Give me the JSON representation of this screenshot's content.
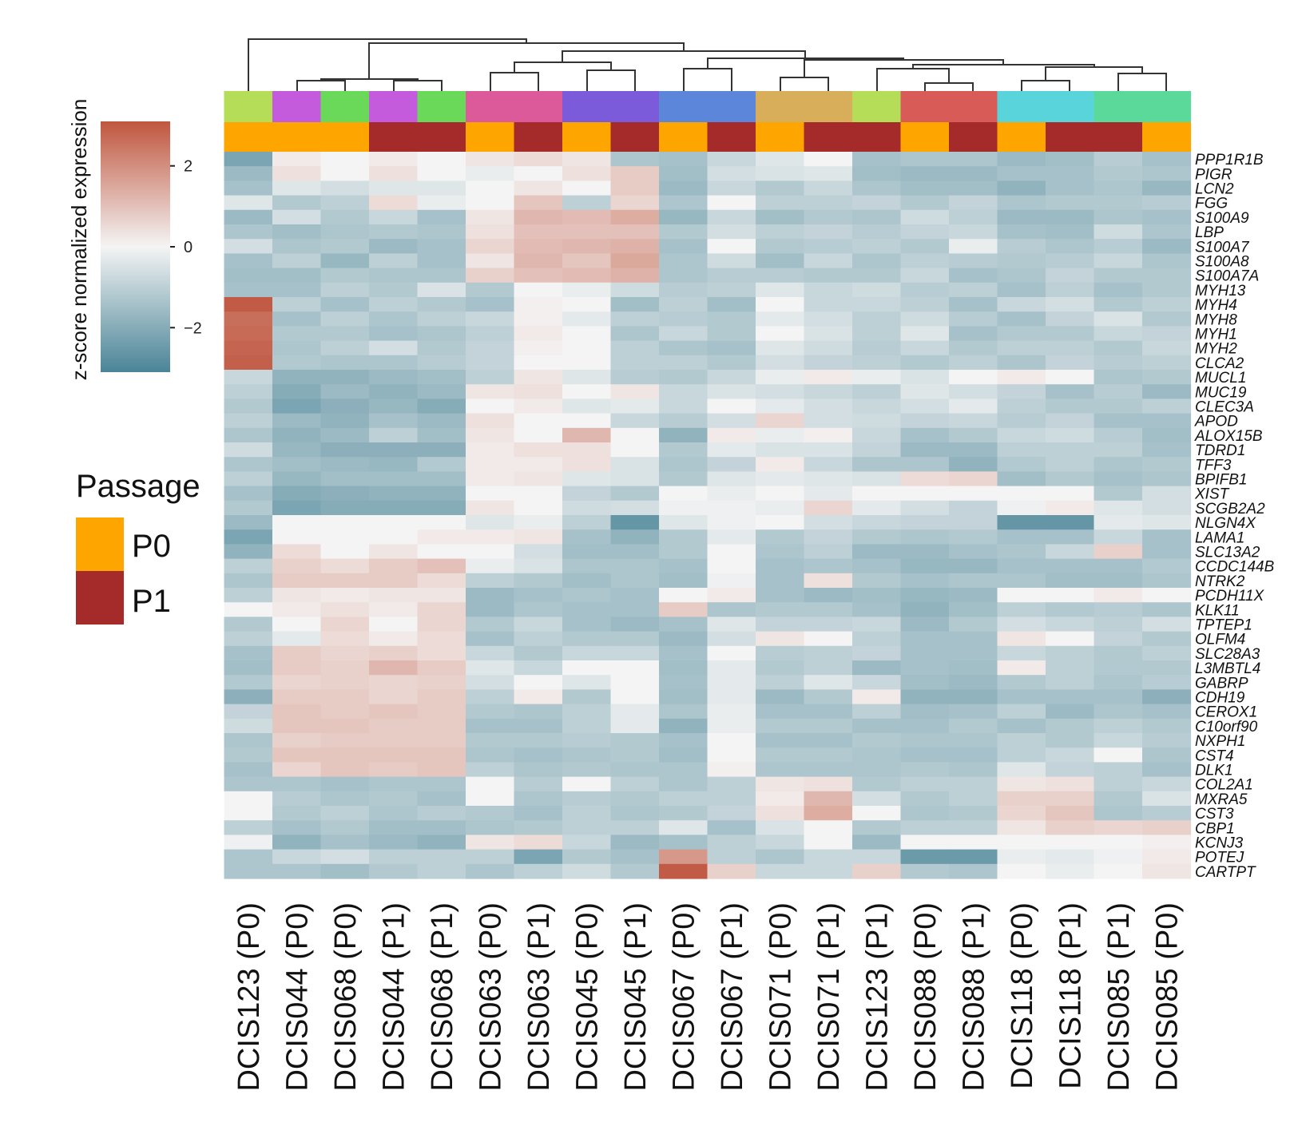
{
  "chart_data": {
    "type": "heatmap",
    "title": "",
    "colorbar": {
      "title": "z-score normalized expression",
      "ticks": [
        {
          "value": 2,
          "label": "2"
        },
        {
          "value": 0,
          "label": "0"
        },
        {
          "value": -2,
          "label": "−2"
        }
      ],
      "range": [
        -3.1,
        3.1
      ],
      "low_color": "#4a8497",
      "mid_color": "#f4f4f4",
      "high_color": "#c0563f"
    },
    "legend": {
      "title": "Passage",
      "items": [
        {
          "label": "P0",
          "color": "#ffa500"
        },
        {
          "label": "P1",
          "color": "#a52a2a"
        }
      ]
    },
    "samples": [
      {
        "label": "DCIS123 (P0)",
        "patient_color": "#b5dd58",
        "passage": "P0"
      },
      {
        "label": "DCIS044 (P0)",
        "patient_color": "#c45bdd",
        "passage": "P0"
      },
      {
        "label": "DCIS068 (P0)",
        "patient_color": "#6ad95a",
        "passage": "P0"
      },
      {
        "label": "DCIS044 (P1)",
        "patient_color": "#c45bdd",
        "passage": "P1"
      },
      {
        "label": "DCIS068 (P1)",
        "patient_color": "#6ad95a",
        "passage": "P1"
      },
      {
        "label": "DCIS063 (P0)",
        "patient_color": "#dd5a9a",
        "passage": "P0"
      },
      {
        "label": "DCIS063 (P1)",
        "patient_color": "#dd5a9a",
        "passage": "P1"
      },
      {
        "label": "DCIS045 (P0)",
        "patient_color": "#7c5bdb",
        "passage": "P0"
      },
      {
        "label": "DCIS045 (P1)",
        "patient_color": "#7c5bdb",
        "passage": "P1"
      },
      {
        "label": "DCIS067 (P0)",
        "patient_color": "#5b86d9",
        "passage": "P0"
      },
      {
        "label": "DCIS067 (P1)",
        "patient_color": "#5b86d9",
        "passage": "P1"
      },
      {
        "label": "DCIS071 (P0)",
        "patient_color": "#d9ae5a",
        "passage": "P0"
      },
      {
        "label": "DCIS071 (P1)",
        "patient_color": "#d9ae5a",
        "passage": "P1"
      },
      {
        "label": "DCIS123 (P1)",
        "patient_color": "#b5dd58",
        "passage": "P1"
      },
      {
        "label": "DCIS088 (P0)",
        "patient_color": "#d95b57",
        "passage": "P0"
      },
      {
        "label": "DCIS088 (P1)",
        "patient_color": "#d95b57",
        "passage": "P1"
      },
      {
        "label": "DCIS118 (P0)",
        "patient_color": "#5ad4db",
        "passage": "P0"
      },
      {
        "label": "DCIS118 (P1)",
        "patient_color": "#5ad4db",
        "passage": "P1"
      },
      {
        "label": "DCIS085 (P1)",
        "patient_color": "#5ad99a",
        "passage": "P1"
      },
      {
        "label": "DCIS085 (P0)",
        "patient_color": "#5ad99a",
        "passage": "P0"
      }
    ],
    "genes": [
      "PPP1R1B",
      "PIGR",
      "LCN2",
      "FGG",
      "S100A9",
      "LBP",
      "S100A7",
      "S100A8",
      "S100A7A",
      "MYH13",
      "MYH4",
      "MYH8",
      "MYH1",
      "MYH2",
      "CLCA2",
      "MUCL1",
      "MUC19",
      "CLEC3A",
      "APOD",
      "ALOX15B",
      "TDRD1",
      "TFF3",
      "BPIFB1",
      "XIST",
      "SCGB2A2",
      "NLGN4X",
      "LAMA1",
      "SLC13A2",
      "CCDC144B",
      "NTRK2",
      "PCDH11X",
      "KLK11",
      "TPTEP1",
      "OLFM4",
      "SLC28A3",
      "L3MBTL4",
      "GABRP",
      "CDH19",
      "CEROX1",
      "C10orf90",
      "NXPH1",
      "CST4",
      "DLK1",
      "COL2A1",
      "MXRA5",
      "CST3",
      "CBP1",
      "KCNJ3",
      "POTEJ",
      "CARTPT"
    ],
    "values": [
      [
        -2.2,
        0.2,
        0.0,
        0.2,
        0.0,
        0.3,
        0.5,
        0.3,
        -1.3,
        -1.4,
        -0.8,
        -0.4,
        0.0,
        -1.4,
        -1.3,
        -1.3,
        -1.6,
        -1.5,
        -1.1,
        -1.4
      ],
      [
        -1.6,
        0.4,
        0.0,
        0.4,
        0.0,
        -0.2,
        0.0,
        0.4,
        0.8,
        -1.5,
        -0.6,
        -0.5,
        -0.4,
        -1.5,
        -1.6,
        -1.6,
        -1.4,
        -1.4,
        -1.2,
        -1.3
      ],
      [
        -1.4,
        -0.4,
        -0.6,
        -0.4,
        -0.4,
        0.0,
        0.3,
        0.0,
        0.8,
        -1.6,
        -0.8,
        -1.2,
        -0.8,
        -1.3,
        -1.5,
        -1.5,
        -1.8,
        -1.4,
        -1.3,
        -1.7
      ],
      [
        -0.4,
        -1.2,
        -1.0,
        0.5,
        -0.2,
        0.0,
        0.9,
        -1.0,
        0.6,
        -1.3,
        0.0,
        -1.0,
        -1.0,
        -0.9,
        -1.2,
        -0.9,
        -1.3,
        -1.2,
        -1.2,
        -1.1
      ],
      [
        -1.6,
        -0.6,
        -1.2,
        -0.8,
        -1.4,
        0.3,
        1.2,
        1.1,
        1.4,
        -1.7,
        -0.8,
        -1.5,
        -1.2,
        -1.3,
        -0.7,
        -1.0,
        -1.6,
        -1.6,
        -1.3,
        -1.4
      ],
      [
        -1.3,
        -1.5,
        -1.3,
        -1.2,
        -1.3,
        0.4,
        1.0,
        1.0,
        1.0,
        -1.2,
        -0.6,
        -1.0,
        -0.9,
        -1.1,
        -0.9,
        -0.8,
        -1.4,
        -1.5,
        -0.7,
        -1.3
      ],
      [
        -0.6,
        -1.3,
        -1.2,
        -1.6,
        -1.4,
        0.6,
        1.1,
        1.2,
        1.3,
        -1.4,
        0.0,
        -1.2,
        -1.1,
        -1.0,
        -1.2,
        -0.2,
        -1.1,
        -1.3,
        -1.1,
        -1.6
      ],
      [
        -1.4,
        -1.0,
        -1.7,
        -1.0,
        -1.4,
        0.3,
        1.2,
        0.9,
        1.5,
        -1.3,
        -0.7,
        -1.5,
        -0.8,
        -1.3,
        -1.0,
        -1.1,
        -1.2,
        -1.1,
        -0.8,
        -1.3
      ],
      [
        -1.5,
        -1.5,
        -1.2,
        -1.3,
        -1.3,
        0.7,
        1.0,
        1.1,
        1.3,
        -1.3,
        -1.1,
        -1.1,
        -1.2,
        -1.2,
        -0.8,
        -1.4,
        -1.3,
        -0.9,
        -1.2,
        -1.2
      ],
      [
        -1.4,
        -1.4,
        -1.0,
        -1.2,
        -0.5,
        -1.2,
        0.0,
        -0.2,
        -0.7,
        -1.1,
        -1.0,
        -0.4,
        -0.8,
        -0.7,
        -1.1,
        -1.0,
        -1.4,
        -1.0,
        -1.4,
        -1.2
      ],
      [
        3.0,
        -1.0,
        -1.4,
        -1.0,
        -1.2,
        -1.4,
        0.1,
        0.0,
        -1.5,
        -1.0,
        -1.5,
        0.0,
        -0.8,
        -0.8,
        -1.0,
        -1.4,
        -0.8,
        -0.6,
        -1.2,
        -1.0
      ],
      [
        2.6,
        -1.4,
        -1.0,
        -1.3,
        -1.0,
        -0.8,
        0.1,
        -0.3,
        -1.0,
        -1.1,
        -1.2,
        -0.3,
        -0.6,
        -1.0,
        -0.7,
        -1.1,
        -1.4,
        -0.9,
        -0.5,
        -1.2
      ],
      [
        2.7,
        -1.2,
        -1.2,
        -1.4,
        -1.3,
        -1.0,
        0.2,
        0.0,
        -1.3,
        -0.8,
        -1.2,
        0.0,
        -0.5,
        -1.0,
        -0.4,
        -1.4,
        -1.2,
        -1.2,
        -0.8,
        -0.9
      ],
      [
        2.8,
        -1.3,
        -1.0,
        -0.6,
        -1.2,
        -0.9,
        0.1,
        0.0,
        -1.0,
        -1.3,
        -1.4,
        -0.4,
        -0.7,
        -1.1,
        -0.8,
        -1.2,
        -1.0,
        -1.0,
        -1.2,
        -0.8
      ],
      [
        2.9,
        -1.2,
        -1.3,
        -1.3,
        -1.1,
        -0.9,
        0.0,
        0.0,
        -1.0,
        -1.0,
        -1.2,
        -0.6,
        -0.9,
        -1.0,
        -1.2,
        -1.0,
        -1.3,
        -0.9,
        -1.1,
        -1.0
      ],
      [
        -0.8,
        -1.8,
        -1.8,
        -1.6,
        -1.5,
        -1.0,
        0.3,
        -0.4,
        -1.1,
        -1.2,
        -0.8,
        -0.2,
        0.2,
        -0.2,
        -0.5,
        0.0,
        0.2,
        0.0,
        -1.3,
        -1.2
      ],
      [
        -1.0,
        -2.0,
        -1.6,
        -1.8,
        -1.6,
        0.3,
        0.4,
        0.0,
        0.3,
        -0.8,
        -0.5,
        -0.6,
        -0.8,
        -1.0,
        -0.4,
        -0.6,
        -0.9,
        -1.4,
        -1.1,
        -1.6
      ],
      [
        -1.2,
        -2.2,
        -1.9,
        -1.7,
        -2.0,
        0.0,
        0.2,
        -0.4,
        -0.3,
        -0.8,
        0.0,
        -0.3,
        -0.6,
        -0.8,
        -0.6,
        -0.3,
        -1.0,
        -1.2,
        -1.2,
        -1.0
      ],
      [
        -1.0,
        -1.6,
        -1.8,
        -1.4,
        -1.6,
        0.4,
        0.0,
        0.0,
        -0.8,
        -1.1,
        -0.6,
        0.6,
        -0.6,
        -0.7,
        -0.9,
        -0.8,
        -1.1,
        -0.9,
        -1.4,
        -1.4
      ],
      [
        -1.3,
        -1.8,
        -1.6,
        -1.0,
        -1.5,
        0.3,
        0.0,
        1.2,
        0.0,
        -1.8,
        0.2,
        -0.2,
        0.1,
        -0.8,
        -1.4,
        -1.2,
        -0.8,
        -0.7,
        -1.1,
        -1.5
      ],
      [
        -0.7,
        -1.7,
        -1.9,
        -1.9,
        -1.9,
        0.2,
        0.4,
        0.4,
        0.0,
        -1.2,
        -0.3,
        -0.5,
        -0.5,
        -0.9,
        -1.6,
        -1.6,
        -1.0,
        -1.0,
        -1.0,
        -1.4
      ],
      [
        -1.3,
        -1.5,
        -1.6,
        -1.7,
        -1.2,
        0.2,
        0.2,
        0.4,
        -0.5,
        -1.3,
        -0.9,
        0.2,
        -0.8,
        -1.3,
        -1.3,
        -1.8,
        -1.2,
        -1.0,
        -1.3,
        -1.2
      ],
      [
        -1.0,
        -1.7,
        -1.5,
        -1.5,
        -1.5,
        0.2,
        0.3,
        -0.4,
        -0.5,
        -1.2,
        -0.4,
        -0.3,
        -0.4,
        -0.5,
        0.5,
        0.6,
        -1.5,
        -1.2,
        -1.4,
        -1.3
      ],
      [
        -1.4,
        -2.0,
        -1.9,
        -1.8,
        -1.8,
        0.0,
        0.0,
        -0.9,
        -1.2,
        0.0,
        -0.2,
        0.0,
        -0.3,
        0.0,
        0.0,
        0.0,
        0.0,
        0.0,
        -1.2,
        -0.6
      ],
      [
        -1.2,
        -2.2,
        -2.0,
        -2.0,
        -2.0,
        0.3,
        0.0,
        -0.7,
        -0.6,
        -0.1,
        -0.1,
        -0.2,
        0.6,
        -0.3,
        -0.6,
        -0.9,
        -0.1,
        0.2,
        -0.4,
        -0.6
      ],
      [
        -1.6,
        0.0,
        0.0,
        0.0,
        0.0,
        -0.4,
        -0.2,
        -1.0,
        -2.6,
        -0.4,
        -0.1,
        0.0,
        -0.6,
        -0.8,
        -0.9,
        -0.9,
        -2.6,
        -2.6,
        -0.3,
        -0.4
      ],
      [
        -2.2,
        0.0,
        0.0,
        0.0,
        0.2,
        0.2,
        0.3,
        -1.4,
        -1.8,
        -1.2,
        -0.3,
        -1.2,
        -0.9,
        -1.2,
        -1.3,
        -1.2,
        -1.4,
        -1.4,
        -0.8,
        -1.4
      ],
      [
        -1.8,
        0.5,
        0.0,
        0.3,
        0.0,
        0.0,
        -0.6,
        -1.5,
        -1.5,
        -1.2,
        0.0,
        -1.3,
        -1.0,
        -1.6,
        -1.6,
        -1.4,
        -1.3,
        -0.8,
        0.7,
        -1.4
      ],
      [
        -1.0,
        0.7,
        0.5,
        0.8,
        1.0,
        -0.2,
        -0.5,
        -1.3,
        -1.3,
        -1.4,
        0.0,
        -1.4,
        -1.3,
        -1.4,
        -1.7,
        -1.7,
        -1.4,
        -1.4,
        -1.4,
        -1.2
      ],
      [
        -1.3,
        0.8,
        0.8,
        0.8,
        0.5,
        -1.0,
        -1.2,
        -1.5,
        -1.3,
        -1.5,
        -0.1,
        -1.4,
        0.4,
        -1.2,
        -1.4,
        -1.3,
        -1.3,
        -1.5,
        -1.5,
        -1.3
      ],
      [
        -1.0,
        0.3,
        0.2,
        0.3,
        0.3,
        -1.6,
        -1.4,
        -1.3,
        -1.4,
        0.0,
        0.2,
        -1.4,
        -1.6,
        -1.5,
        -1.7,
        -1.6,
        0.0,
        0.0,
        0.2,
        0.0
      ],
      [
        0.0,
        0.2,
        0.4,
        0.2,
        0.6,
        -1.6,
        -1.3,
        -1.4,
        -1.4,
        0.8,
        -1.3,
        -1.2,
        -1.2,
        -1.4,
        -1.8,
        -1.5,
        -1.0,
        -1.2,
        -1.1,
        -1.3
      ],
      [
        -1.2,
        0.0,
        0.6,
        0.0,
        0.6,
        -1.2,
        -0.8,
        -1.4,
        -1.6,
        -1.4,
        -0.4,
        -0.9,
        -0.9,
        -0.8,
        -1.6,
        -1.2,
        -0.6,
        -0.8,
        -1.0,
        -0.6
      ],
      [
        -1.0,
        -0.3,
        0.5,
        0.2,
        0.5,
        -1.4,
        -1.0,
        -1.2,
        -1.2,
        -1.6,
        -0.6,
        0.3,
        0.0,
        -1.0,
        -1.4,
        -1.4,
        0.3,
        0.0,
        -0.9,
        -1.2
      ],
      [
        -1.4,
        0.8,
        0.6,
        0.7,
        0.5,
        -0.8,
        -1.2,
        -0.8,
        -0.8,
        -1.4,
        0.0,
        -1.1,
        -1.0,
        -0.9,
        -1.4,
        -1.4,
        -0.8,
        -1.0,
        -1.2,
        -1.0
      ],
      [
        -1.5,
        0.8,
        0.7,
        1.2,
        0.8,
        -0.4,
        -0.8,
        0.0,
        0.0,
        -1.5,
        -0.3,
        -1.2,
        -1.0,
        -1.6,
        -1.4,
        -1.5,
        0.2,
        -1.0,
        -1.2,
        -1.2
      ],
      [
        -1.2,
        0.6,
        0.7,
        0.6,
        0.7,
        -0.6,
        0.0,
        -0.4,
        0.0,
        -1.4,
        -0.3,
        -1.0,
        -0.4,
        -0.8,
        -1.5,
        -1.6,
        -1.2,
        -1.0,
        -1.3,
        -1.1
      ],
      [
        -1.9,
        0.8,
        0.8,
        0.6,
        0.8,
        -1.0,
        0.2,
        -1.2,
        0.0,
        -1.5,
        -0.3,
        -1.6,
        -1.2,
        0.2,
        -1.8,
        -1.8,
        -1.4,
        -1.4,
        -1.4,
        -1.9
      ],
      [
        -0.9,
        0.9,
        0.8,
        0.9,
        0.8,
        -1.2,
        -1.3,
        -1.0,
        -0.3,
        -1.3,
        -0.2,
        -1.4,
        -1.4,
        -1.0,
        -1.5,
        -1.4,
        -1.0,
        -1.6,
        -1.3,
        -1.4
      ],
      [
        -0.7,
        0.9,
        0.9,
        0.8,
        0.8,
        -1.4,
        -1.4,
        -1.0,
        -0.3,
        -1.8,
        -0.2,
        -1.2,
        -1.2,
        -1.4,
        -1.4,
        -1.2,
        -1.4,
        -1.2,
        -1.0,
        -1.2
      ],
      [
        -1.3,
        0.7,
        0.8,
        0.8,
        0.8,
        -1.2,
        -1.2,
        -1.1,
        -1.2,
        -1.4,
        0.0,
        -1.4,
        -1.4,
        -1.2,
        -1.3,
        -1.3,
        -1.0,
        -1.2,
        -0.8,
        -1.1
      ],
      [
        -1.2,
        0.9,
        0.9,
        0.9,
        0.9,
        -1.3,
        -1.4,
        -1.3,
        -1.2,
        -1.5,
        0.0,
        -1.2,
        -1.2,
        -1.3,
        -1.4,
        -1.4,
        -1.0,
        -0.8,
        0.0,
        -1.3
      ],
      [
        -1.4,
        0.6,
        0.9,
        0.8,
        0.9,
        -1.0,
        -1.3,
        -1.2,
        -1.3,
        -1.3,
        0.1,
        -1.3,
        -1.3,
        -1.3,
        -1.2,
        -1.3,
        -0.4,
        -0.9,
        -1.0,
        -1.4
      ],
      [
        -1.3,
        -1.3,
        -1.4,
        -1.3,
        -1.3,
        0.0,
        -1.1,
        0.0,
        -1.0,
        -1.3,
        -1.0,
        0.3,
        0.4,
        -1.2,
        -1.0,
        -1.0,
        0.3,
        0.4,
        -1.0,
        -0.8
      ],
      [
        0.0,
        -1.1,
        -1.3,
        -1.2,
        -1.4,
        0.0,
        -1.3,
        -1.1,
        -1.2,
        -1.0,
        -1.0,
        0.2,
        1.2,
        -0.6,
        -1.2,
        -1.0,
        0.7,
        0.7,
        -1.2,
        -0.5
      ],
      [
        0.0,
        -1.2,
        -1.0,
        -1.3,
        -1.1,
        -1.2,
        -1.4,
        -1.0,
        -1.3,
        -1.2,
        -0.9,
        0.4,
        1.4,
        0.0,
        -1.3,
        -1.2,
        0.6,
        0.9,
        -1.3,
        -1.1
      ],
      [
        -1.0,
        -1.4,
        -1.2,
        -1.5,
        -1.5,
        -1.3,
        -1.2,
        -1.0,
        -1.0,
        -0.4,
        -1.4,
        -0.5,
        0.0,
        -1.2,
        -1.0,
        -1.0,
        0.3,
        0.7,
        0.6,
        0.7
      ],
      [
        -0.1,
        -1.8,
        -1.4,
        -1.6,
        -1.8,
        0.3,
        0.5,
        -0.8,
        -1.6,
        -1.4,
        -1.0,
        -0.8,
        0.0,
        -1.6,
        0.0,
        0.0,
        0.0,
        0.0,
        0.0,
        0.1
      ],
      [
        -1.3,
        -0.8,
        -0.6,
        -1.0,
        -1.0,
        -1.0,
        -2.2,
        -1.2,
        -1.4,
        1.8,
        -1.0,
        -1.3,
        -0.8,
        -0.8,
        -2.5,
        -2.5,
        -0.2,
        -0.3,
        -0.1,
        0.2
      ],
      [
        -1.3,
        -1.3,
        -1.5,
        -1.2,
        -1.0,
        -1.3,
        -1.0,
        -0.7,
        -1.2,
        3.0,
        0.7,
        -0.8,
        -0.8,
        0.7,
        -1.2,
        -1.3,
        0.0,
        -0.2,
        0.0,
        0.3
      ]
    ],
    "dendrogram_note": "column clustering tree drawn above the sample annotation bars"
  }
}
